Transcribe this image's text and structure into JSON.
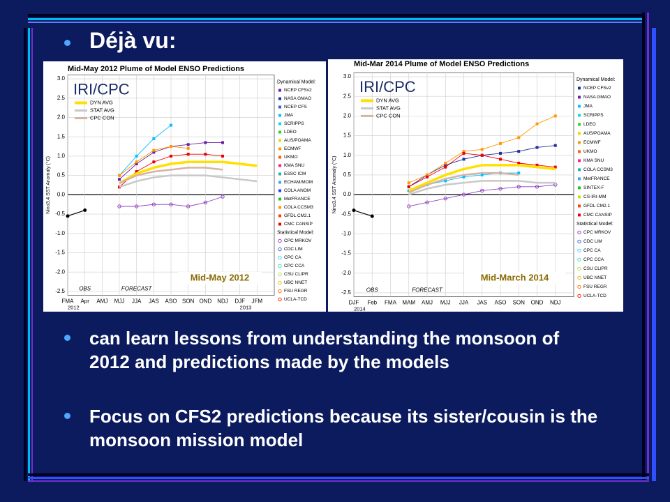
{
  "slide": {
    "heading": "Déjà vu:",
    "bullets": [
      "can learn lessons from understanding the monsoon of 2012 and predictions made by the models",
      "Focus on CFS2 predictions because its sister/cousin is the monsoon mission model"
    ]
  },
  "chart_data": [
    {
      "type": "plume",
      "title": "Mid-May 2012 Plume of Model ENSO Predictions",
      "logo": "IRI/CPC",
      "ylabel": "Nino3.4 SST Anomaly (°C)",
      "corner_label": "Mid-May 2012",
      "categories": [
        "FMA",
        "Apr",
        "AMJ",
        "MJJ",
        "JJA",
        "JAS",
        "ASO",
        "SON",
        "OND",
        "NDJ",
        "DJF",
        "JFM"
      ],
      "year_labels": [
        "2012",
        null,
        null,
        null,
        null,
        null,
        null,
        null,
        null,
        null,
        "2013",
        null
      ],
      "phase_labels": [
        null,
        "OBS",
        null,
        null,
        "FORECAST",
        null,
        null,
        null,
        null,
        null,
        null,
        null
      ],
      "ylim": [
        -2.6,
        3.1
      ],
      "yticks": [
        {
          "value": 3,
          "label": "3.0"
        },
        2.5,
        {
          "value": 2,
          "label": "2.0"
        },
        1.5,
        {
          "value": 1,
          "label": "1.0"
        },
        0.5,
        {
          "value": 0,
          "label": "0.0"
        },
        -0.5,
        {
          "value": -1,
          "label": "-1.0"
        },
        -1.5,
        {
          "value": -2,
          "label": "-2.0"
        },
        -2.5
      ],
      "grid": true,
      "observed": [
        -0.55,
        -0.4,
        null,
        null,
        null,
        null,
        null,
        null,
        null,
        null,
        null,
        null
      ],
      "series": [
        {
          "name": "DYN AVG",
          "color": "#ffe000",
          "values": [
            null,
            -0.4,
            null,
            0.3,
            0.55,
            0.7,
            0.8,
            0.85,
            0.85,
            0.85,
            0.8,
            0.75
          ]
        },
        {
          "name": "STAT AVG",
          "color": "#c8c8c8",
          "values": [
            null,
            -0.4,
            null,
            0.2,
            0.35,
            0.45,
            0.5,
            0.5,
            0.5,
            0.45,
            0.4,
            0.35
          ]
        },
        {
          "name": "CPC CON",
          "color": "#d4b4a4",
          "values": [
            null,
            -0.4,
            null,
            0.3,
            0.5,
            0.6,
            0.65,
            0.7,
            0.7,
            0.65,
            null,
            null
          ]
        }
      ],
      "dynamical_header": "Dynamical Model:",
      "dynamical_models": [
        {
          "name": "NCEP CFSv2",
          "color": "#6a1ea8",
          "values": [
            null,
            -0.4,
            null,
            0.4,
            0.8,
            1.1,
            1.25,
            1.3,
            1.35,
            1.35,
            null,
            null
          ]
        },
        {
          "name": "NASA GMAO",
          "color": "#2030a0"
        },
        {
          "name": "NCEP CFS",
          "color": "#3060d0"
        },
        {
          "name": "JMA",
          "color": "#00c0ff",
          "values": [
            null,
            -0.4,
            null,
            0.5,
            1.0,
            1.45,
            1.8,
            null,
            null,
            null,
            null,
            null
          ]
        },
        {
          "name": "SCRIPPS",
          "color": "#00e0e0"
        },
        {
          "name": "LDEO",
          "color": "#30d030"
        },
        {
          "name": "AUS/POAMA",
          "color": "#e0e000"
        },
        {
          "name": "ECMWF",
          "color": "#ff9900",
          "values": [
            null,
            -0.4,
            null,
            0.5,
            0.85,
            1.15,
            1.25,
            1.2,
            null,
            null,
            null,
            null
          ]
        },
        {
          "name": "UKMO",
          "color": "#ff6000"
        },
        {
          "name": "KMA SNU",
          "color": "#ff1a8c"
        },
        {
          "name": "ESSC ICM",
          "color": "#20b0b0"
        },
        {
          "name": "ECHAM/MOM",
          "color": "#40a0ff"
        },
        {
          "name": "COLA ANOM",
          "color": "#2040ff"
        },
        {
          "name": "MetFRANCE",
          "color": "#20c020"
        },
        {
          "name": "COLA CCSM3",
          "color": "#ff9a00"
        },
        {
          "name": "GFDL CM2.1",
          "color": "#ff4000"
        },
        {
          "name": "CMC CANSIP",
          "color": "#ee0000",
          "values": [
            null,
            -0.4,
            null,
            0.2,
            0.6,
            0.85,
            1.0,
            1.05,
            1.05,
            1.0,
            null,
            null
          ]
        }
      ],
      "statistical_header": "Statistical Model:",
      "statistical_models": [
        {
          "name": "CPC MRKOV",
          "color": "#9040c0",
          "values": [
            null,
            -0.4,
            null,
            -0.3,
            -0.3,
            -0.25,
            -0.25,
            -0.3,
            -0.2,
            -0.05,
            null,
            null
          ]
        },
        {
          "name": "CDC LIM",
          "color": "#4060e0"
        },
        {
          "name": "CPC CA",
          "color": "#40d0ff"
        },
        {
          "name": "CPC CCA",
          "color": "#40e0c0"
        },
        {
          "name": "CSU CLIPR",
          "color": "#b0e040"
        },
        {
          "name": "UBC NNET",
          "color": "#e0c000"
        },
        {
          "name": "FSU REGR",
          "color": "#ff8000"
        },
        {
          "name": "UCLA-TCD",
          "color": "#ff2000"
        }
      ]
    },
    {
      "type": "plume",
      "title": "Mid-Mar 2014 Plume of Model ENSO Predictions",
      "logo": "IRI/CPC",
      "ylabel": "Nino3.4 SST Anomaly (°C)",
      "corner_label": "Mid-March 2014",
      "categories": [
        "DJF",
        "Feb",
        "FMA",
        "MAM",
        "AMJ",
        "MJJ",
        "JJA",
        "JAS",
        "ASO",
        "SON",
        "OND",
        "NDJ"
      ],
      "year_labels": [
        "2014",
        null,
        null,
        null,
        null,
        null,
        null,
        null,
        null,
        null,
        null,
        null
      ],
      "phase_labels": [
        null,
        "OBS",
        null,
        null,
        "FORECAST",
        null,
        null,
        null,
        null,
        null,
        null,
        null
      ],
      "ylim": [
        -2.6,
        3.1
      ],
      "yticks": [
        {
          "value": 3,
          "label": "3.0"
        },
        2.5,
        {
          "value": 2,
          "label": "2.0"
        },
        1.5,
        {
          "value": 1,
          "label": "1.0"
        },
        0.5,
        {
          "value": 0,
          "label": "0.0"
        },
        -0.5,
        {
          "value": -1,
          "label": "-1.0"
        },
        -1.5,
        {
          "value": -2,
          "label": "-2.0"
        },
        -2.5
      ],
      "grid": true,
      "observed": [
        -0.4,
        -0.55,
        null,
        null,
        null,
        null,
        null,
        null,
        null,
        null,
        null,
        null
      ],
      "series": [
        {
          "name": "DYN AVG",
          "color": "#ffe000",
          "values": [
            null,
            -0.55,
            null,
            0.1,
            0.3,
            0.5,
            0.65,
            0.75,
            0.75,
            0.75,
            0.7,
            0.65
          ]
        },
        {
          "name": "STAT AVG",
          "color": "#c8c8c8",
          "values": [
            null,
            -0.55,
            null,
            0.0,
            0.15,
            0.25,
            0.3,
            0.35,
            0.35,
            0.35,
            0.3,
            0.3
          ]
        },
        {
          "name": "CPC CON",
          "color": "#d4b4a4",
          "values": [
            null,
            -0.55,
            null,
            0.05,
            0.25,
            0.4,
            0.5,
            0.55,
            0.55,
            0.5,
            null,
            null
          ]
        }
      ],
      "dynamical_header": "Dynamical Model:",
      "dynamical_models": [
        {
          "name": "NCEP CFSv2",
          "color": "#2030a0",
          "values": [
            null,
            -0.55,
            null,
            0.2,
            0.5,
            0.75,
            0.9,
            1.0,
            1.05,
            1.1,
            1.2,
            1.25
          ]
        },
        {
          "name": "NASA GMAO",
          "color": "#6a1ea8"
        },
        {
          "name": "JMA",
          "color": "#00c0ff",
          "values": [
            null,
            -0.55,
            null,
            0.1,
            0.25,
            0.35,
            0.45,
            0.5,
            0.55,
            0.55,
            null,
            null
          ]
        },
        {
          "name": "SCRIPPS",
          "color": "#00e0e0"
        },
        {
          "name": "LDEO",
          "color": "#30d030"
        },
        {
          "name": "AUS/POAMA",
          "color": "#e0e000"
        },
        {
          "name": "ECMWF",
          "color": "#ff9900",
          "values": [
            null,
            -0.55,
            null,
            0.3,
            0.5,
            0.8,
            1.1,
            1.15,
            1.3,
            1.45,
            1.8,
            2.0
          ]
        },
        {
          "name": "UKMO",
          "color": "#ff6000"
        },
        {
          "name": "KMA SNU",
          "color": "#ff1a8c"
        },
        {
          "name": "COLA CCSM3",
          "color": "#20b0b0"
        },
        {
          "name": "MetFRANCE",
          "color": "#40a0ff"
        },
        {
          "name": "SINTEX-F",
          "color": "#20c020"
        },
        {
          "name": "CS-IRI-MM",
          "color": "#c0e000"
        },
        {
          "name": "GFDL CM2.1",
          "color": "#ff4000"
        },
        {
          "name": "CMC CANSIP",
          "color": "#ee0000",
          "values": [
            null,
            -0.55,
            null,
            0.2,
            0.45,
            0.7,
            1.05,
            1.0,
            0.9,
            0.8,
            0.75,
            0.7
          ]
        }
      ],
      "statistical_header": "Statistical Model:",
      "statistical_models": [
        {
          "name": "CPC MRKOV",
          "color": "#9040c0",
          "values": [
            null,
            -0.55,
            null,
            -0.3,
            -0.2,
            -0.1,
            0.0,
            0.1,
            0.15,
            0.2,
            0.2,
            0.25
          ]
        },
        {
          "name": "CDC LIM",
          "color": "#4060e0"
        },
        {
          "name": "CPC CA",
          "color": "#40d0ff"
        },
        {
          "name": "CPC CCA",
          "color": "#40e0c0"
        },
        {
          "name": "CSU CLIPR",
          "color": "#b0e040"
        },
        {
          "name": "UBC NNET",
          "color": "#e0c000"
        },
        {
          "name": "FSU REGR",
          "color": "#ff8000"
        },
        {
          "name": "UCLA-TCD",
          "color": "#ff2000"
        }
      ]
    }
  ]
}
